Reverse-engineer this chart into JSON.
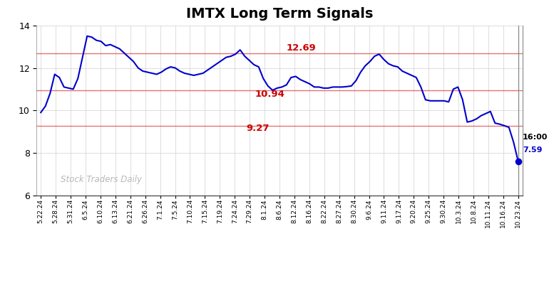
{
  "title": "IMTX Long Term Signals",
  "title_fontsize": 14,
  "title_fontweight": "bold",
  "ylim": [
    6,
    14
  ],
  "yticks": [
    6,
    8,
    10,
    12,
    14
  ],
  "hlines": [
    {
      "y": 12.69,
      "label": "12.69",
      "color": "#cc0000"
    },
    {
      "y": 10.94,
      "label": "10.94",
      "color": "#cc0000"
    },
    {
      "y": 9.27,
      "label": "9.27",
      "color": "#cc0000"
    }
  ],
  "hline_label_xi": [
    55,
    48,
    46
  ],
  "line_color": "#0000cc",
  "line_width": 1.5,
  "watermark": "Stock Traders Daily",
  "watermark_color": "#b0b0b0",
  "dot_color": "#0000cc",
  "dot_size": 35,
  "background_color": "#ffffff",
  "grid_color": "#d0d0d0",
  "xtick_labels": [
    "5.22.24",
    "5.28.24",
    "5.31.24",
    "6.5.24",
    "6.10.24",
    "6.13.24",
    "6.21.24",
    "6.26.24",
    "7.1.24",
    "7.5.24",
    "7.10.24",
    "7.15.24",
    "7.19.24",
    "7.24.24",
    "7.29.24",
    "8.1.24",
    "8.6.24",
    "8.12.24",
    "8.16.24",
    "8.22.24",
    "8.27.24",
    "8.30.24",
    "9.6.24",
    "9.11.24",
    "9.17.24",
    "9.20.24",
    "9.25.24",
    "9.30.24",
    "10.3.24",
    "10.8.24",
    "10.11.24",
    "10.16.24",
    "10.23.24"
  ],
  "prices": [
    9.9,
    10.2,
    10.8,
    11.7,
    11.55,
    11.1,
    11.05,
    11.0,
    11.5,
    12.5,
    13.5,
    13.45,
    13.3,
    13.25,
    13.05,
    13.1,
    13.0,
    12.9,
    12.7,
    12.5,
    12.3,
    12.0,
    11.85,
    11.8,
    11.75,
    11.7,
    11.8,
    11.95,
    12.05,
    12.0,
    11.85,
    11.75,
    11.7,
    11.65,
    11.7,
    11.75,
    11.9,
    12.05,
    12.2,
    12.35,
    12.5,
    12.55,
    12.65,
    12.85,
    12.55,
    12.35,
    12.15,
    12.05,
    11.5,
    11.15,
    10.95,
    11.05,
    11.1,
    11.2,
    11.55,
    11.6,
    11.45,
    11.35,
    11.25,
    11.1,
    11.1,
    11.05,
    11.05,
    11.1,
    11.1,
    11.1,
    11.12,
    11.15,
    11.4,
    11.8,
    12.1,
    12.3,
    12.55,
    12.65,
    12.4,
    12.2,
    12.1,
    12.05,
    11.85,
    11.75,
    11.65,
    11.55,
    11.1,
    10.5,
    10.45,
    10.45,
    10.45,
    10.45,
    10.4,
    11.0,
    11.1,
    10.5,
    9.45,
    9.5,
    9.6,
    9.75,
    9.85,
    9.95,
    9.4,
    9.35,
    9.28,
    9.2,
    8.5,
    7.59
  ],
  "last_price": 7.59,
  "last_time": "16:00",
  "vline_color": "#888888"
}
